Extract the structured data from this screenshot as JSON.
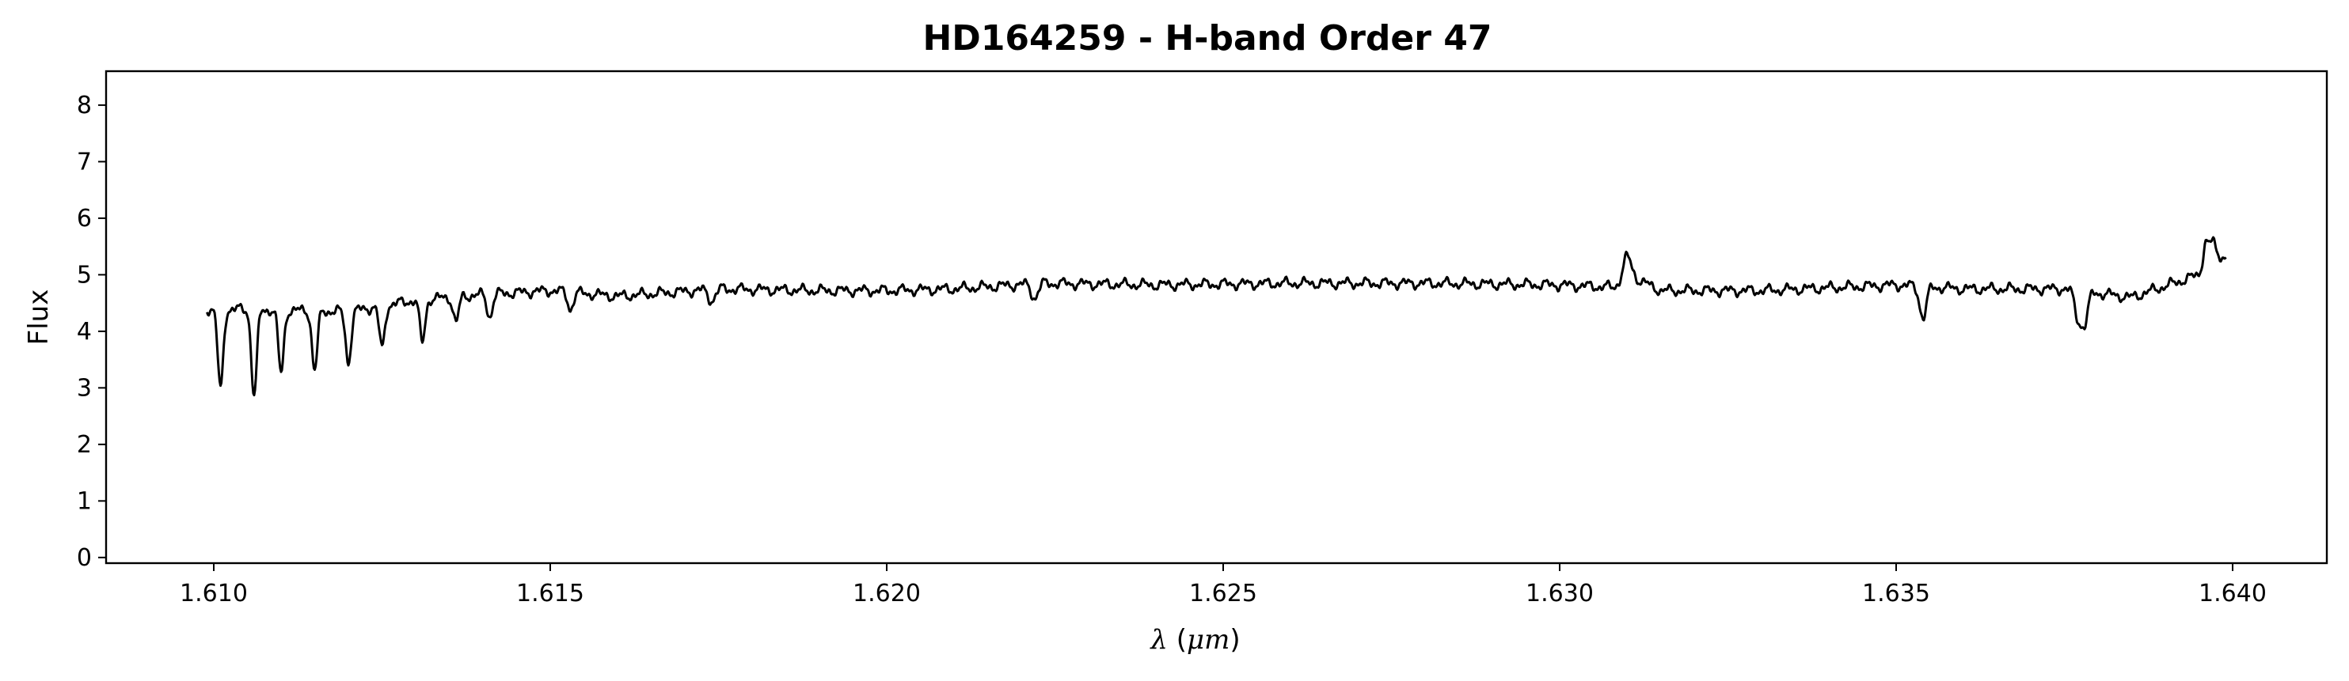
{
  "chart_data": {
    "type": "line",
    "title": "HD164259 - H-band Order 47",
    "xlabel_symbol": "λ",
    "xlabel_unit_open": " (",
    "xlabel_unit": "μm",
    "xlabel_unit_close": ")",
    "ylabel": "Flux",
    "xlim": [
      1.6084,
      1.6414
    ],
    "ylim": [
      -0.1,
      8.6
    ],
    "xticks": [
      "1.610",
      "1.615",
      "1.620",
      "1.625",
      "1.630",
      "1.635",
      "1.640"
    ],
    "xtick_values": [
      1.61,
      1.615,
      1.62,
      1.625,
      1.63,
      1.635,
      1.64
    ],
    "yticks": [
      "0",
      "1",
      "2",
      "3",
      "4",
      "5",
      "6",
      "7",
      "8"
    ],
    "ytick_values": [
      0,
      1,
      2,
      3,
      4,
      5,
      6,
      7,
      8
    ],
    "grid": false,
    "line_color": "#000000",
    "series": [
      {
        "x_start": 1.6099,
        "x_end": 1.6399,
        "continuum": [
          [
            1.6099,
            4.4
          ],
          [
            1.612,
            4.35
          ],
          [
            1.613,
            4.55
          ],
          [
            1.614,
            4.65
          ],
          [
            1.615,
            4.72
          ],
          [
            1.616,
            4.62
          ],
          [
            1.6175,
            4.75
          ],
          [
            1.619,
            4.72
          ],
          [
            1.62,
            4.72
          ],
          [
            1.621,
            4.75
          ],
          [
            1.6223,
            4.85
          ],
          [
            1.624,
            4.82
          ],
          [
            1.626,
            4.85
          ],
          [
            1.628,
            4.85
          ],
          [
            1.63,
            4.82
          ],
          [
            1.6308,
            4.78
          ],
          [
            1.6311,
            4.95
          ],
          [
            1.6315,
            4.72
          ],
          [
            1.633,
            4.72
          ],
          [
            1.635,
            4.82
          ],
          [
            1.636,
            4.75
          ],
          [
            1.6375,
            4.75
          ],
          [
            1.6385,
            4.6
          ],
          [
            1.639,
            4.8
          ],
          [
            1.6395,
            5.0
          ],
          [
            1.6398,
            5.35
          ],
          [
            1.6399,
            5.3
          ]
        ],
        "features": [
          {
            "x": 1.6101,
            "depth": 1.42,
            "width": 4e-05
          },
          {
            "x": 1.6106,
            "depth": 1.52,
            "width": 4e-05
          },
          {
            "x": 1.611,
            "depth": 1.12,
            "width": 4e-05
          },
          {
            "x": 1.6115,
            "depth": 1.05,
            "width": 4e-05
          },
          {
            "x": 1.612,
            "depth": 0.9,
            "width": 4e-05
          },
          {
            "x": 1.6125,
            "depth": 0.75,
            "width": 4e-05
          },
          {
            "x": 1.6131,
            "depth": 0.75,
            "width": 4e-05
          },
          {
            "x": 1.6136,
            "depth": 0.45,
            "width": 4e-05
          },
          {
            "x": 1.6141,
            "depth": 0.4,
            "width": 4e-05
          },
          {
            "x": 1.6153,
            "depth": 0.3,
            "width": 4e-05
          },
          {
            "x": 1.6174,
            "depth": 0.2,
            "width": 5e-05
          },
          {
            "x": 1.6222,
            "depth": 0.25,
            "width": 5e-05
          },
          {
            "x": 1.631,
            "depth": -0.42,
            "width": 6e-05
          },
          {
            "x": 1.6354,
            "depth": 0.55,
            "width": 5e-05
          },
          {
            "x": 1.6377,
            "depth": 0.45,
            "width": 5e-05
          },
          {
            "x": 1.6378,
            "depth": 0.55,
            "width": 5e-05
          },
          {
            "x": 1.6396,
            "depth": -0.45,
            "width": 4e-05
          },
          {
            "x": 1.6397,
            "depth": -0.35,
            "width": 4e-05
          }
        ],
        "ripple_amplitude": 0.06
      }
    ]
  }
}
